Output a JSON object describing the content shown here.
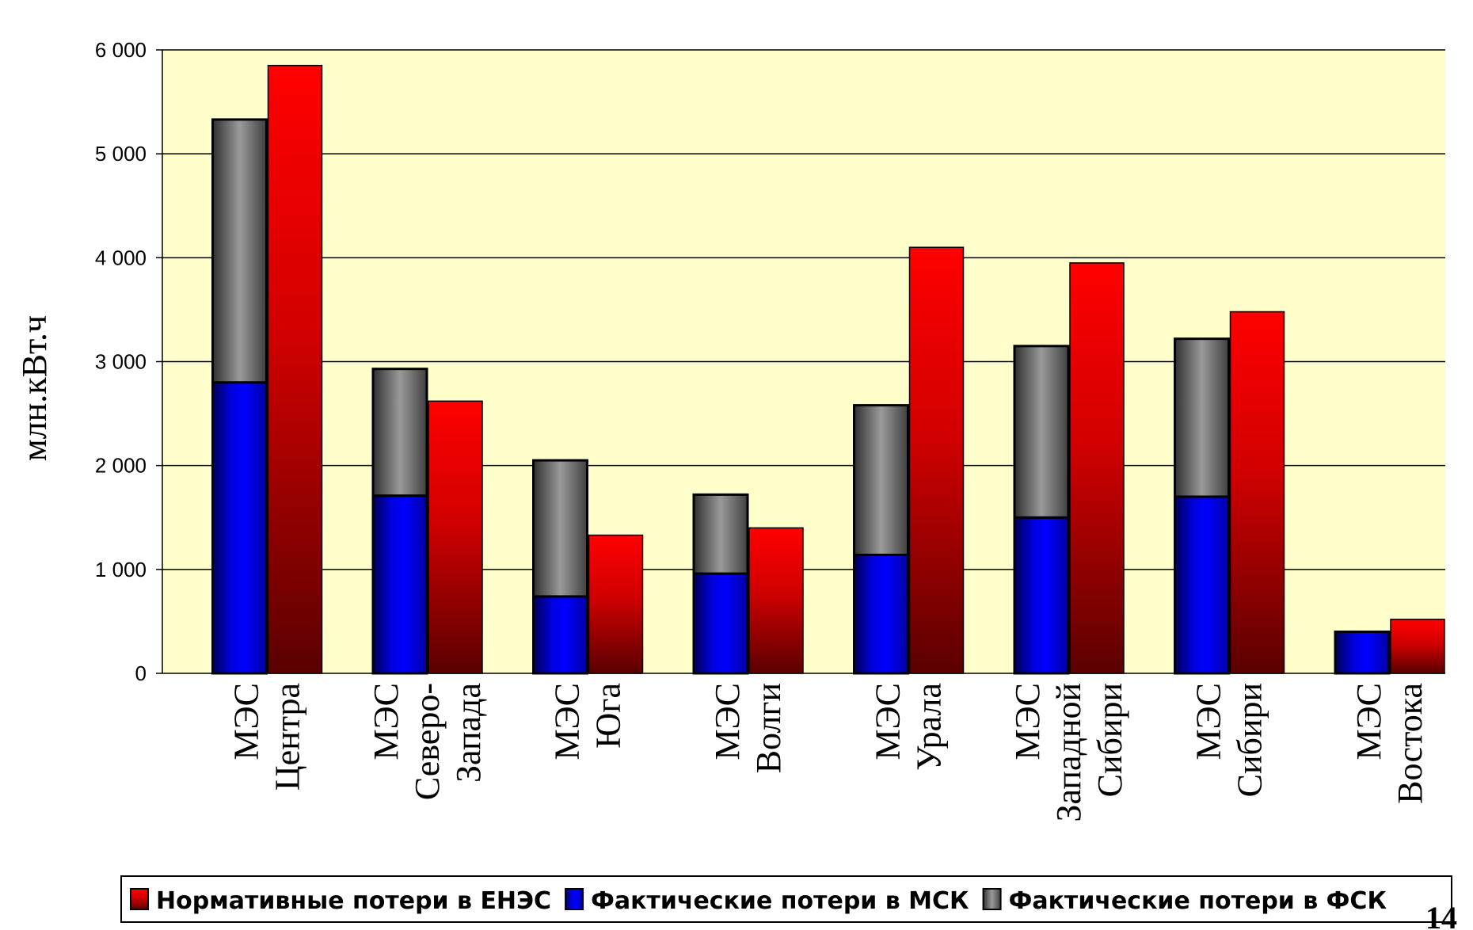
{
  "chart_data": {
    "type": "bar",
    "stacked_series_and_grouped": true,
    "ylabel": "млн.кВт.ч",
    "ylim": [
      0,
      6000
    ],
    "yticks": [
      "0",
      "1 000",
      "2 000",
      "3 000",
      "4 000",
      "5 000",
      "6 000"
    ],
    "ytick_values": [
      0,
      1000,
      2000,
      3000,
      4000,
      5000,
      6000
    ],
    "grid": true,
    "legend_position": "bottom",
    "categories": [
      [
        "МЭС",
        "Центра"
      ],
      [
        "МЭС",
        "Северо-",
        "Запада"
      ],
      [
        "МЭС",
        "Юга"
      ],
      [
        "МЭС",
        "Волги"
      ],
      [
        "МЭС",
        "Урала"
      ],
      [
        "МЭС",
        "Западной",
        "Сибири"
      ],
      [
        "МЭС",
        "Сибири"
      ],
      [
        "МЭС",
        "Востока"
      ]
    ],
    "series": [
      {
        "name": "Нормативные потери в ЕНЭС",
        "color": "#ff0000",
        "stack": "B",
        "values": [
          5850,
          2620,
          1330,
          1400,
          4100,
          3950,
          3480,
          520
        ]
      },
      {
        "name": "Фактические потери в МСК",
        "color": "#0000ff",
        "stack": "A",
        "values": [
          2800,
          1710,
          740,
          960,
          1140,
          1500,
          1700,
          400
        ]
      },
      {
        "name": "Фактические потери в ФСК",
        "color": "#808080",
        "stack": "A",
        "values": [
          2530,
          1220,
          1310,
          760,
          1440,
          1650,
          1520,
          0
        ]
      }
    ]
  },
  "page_number": "14",
  "colors": {
    "plot_background": "#ffffcc",
    "gridline": "#000000"
  }
}
